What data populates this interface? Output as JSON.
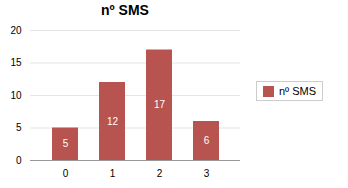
{
  "chart_data": {
    "type": "bar",
    "title": "nº SMS",
    "categories": [
      0,
      1,
      2,
      3
    ],
    "series": [
      {
        "name": "nº SMS",
        "color": "#B85450",
        "values": [
          5,
          12,
          17,
          6
        ]
      }
    ],
    "ylim": [
      0,
      20
    ],
    "yticks": [
      0,
      5,
      10,
      15,
      20
    ],
    "grid": true,
    "legend": "right",
    "data_labels": true
  }
}
